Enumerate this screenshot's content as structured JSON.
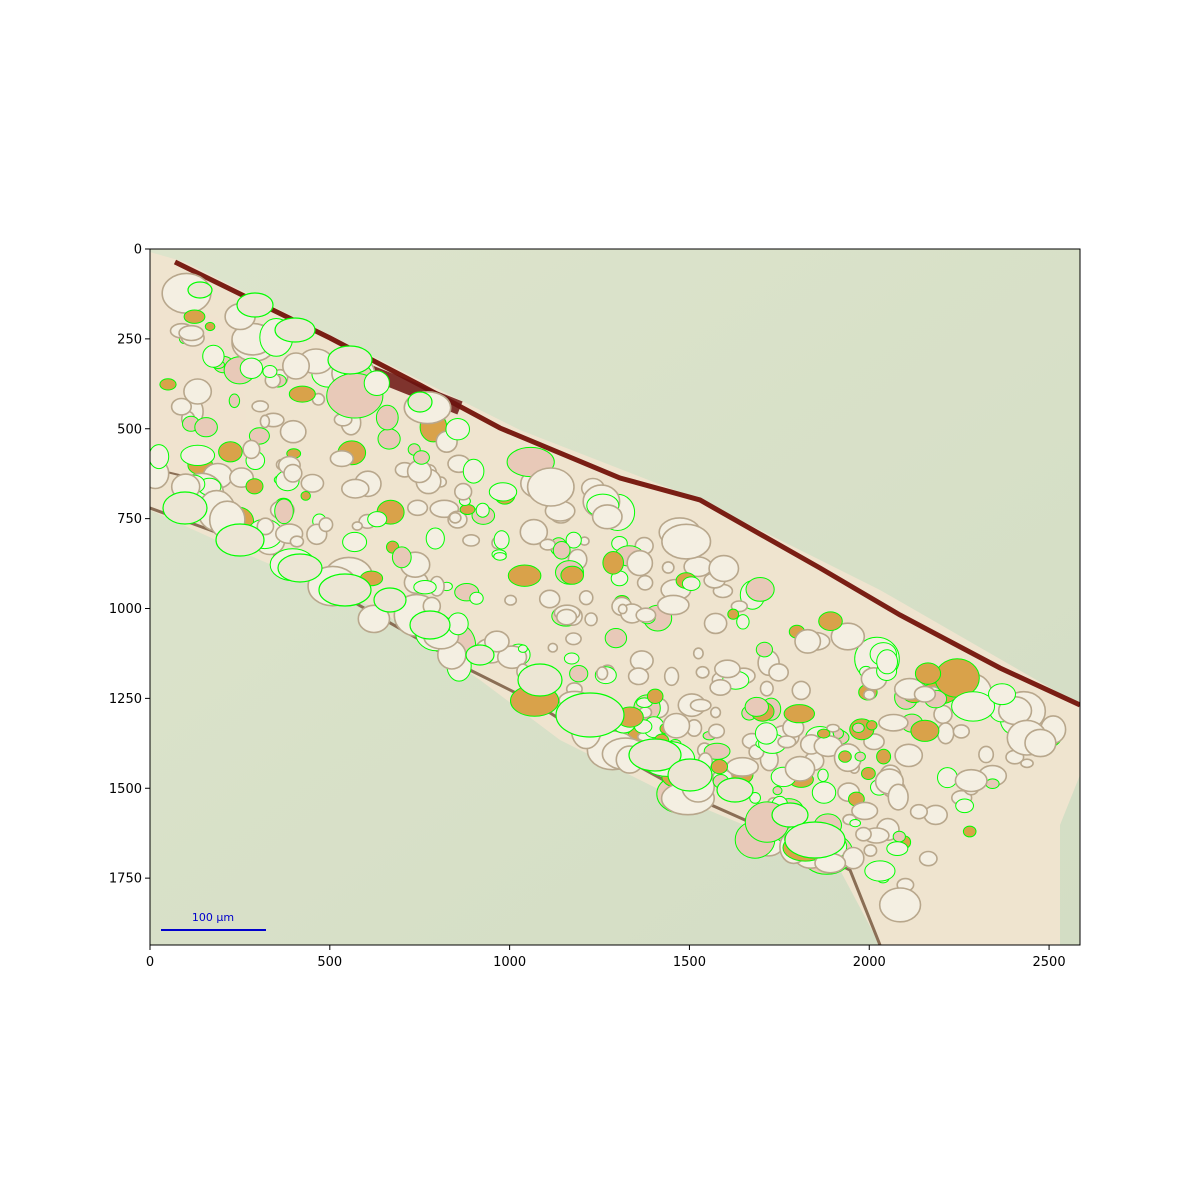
{
  "image": {
    "description_colors": {
      "background": "#d8e0c8",
      "tissue_light": "#efe6d2",
      "cell_wall": "#9a8a70",
      "epidermis_dark": "#7a1e14",
      "segmentation_outline": "#00ff00",
      "scale_bar": "#0000cc"
    }
  },
  "axes": {
    "x_ticks": [
      "0",
      "500",
      "1000",
      "1500",
      "2000",
      "2500"
    ],
    "y_ticks": [
      "0",
      "250",
      "500",
      "750",
      "1000",
      "1250",
      "1500",
      "1750"
    ],
    "x_range": [
      0,
      2586
    ],
    "y_range": [
      1936,
      0
    ]
  },
  "scale_bar": {
    "label": "100 µm"
  }
}
